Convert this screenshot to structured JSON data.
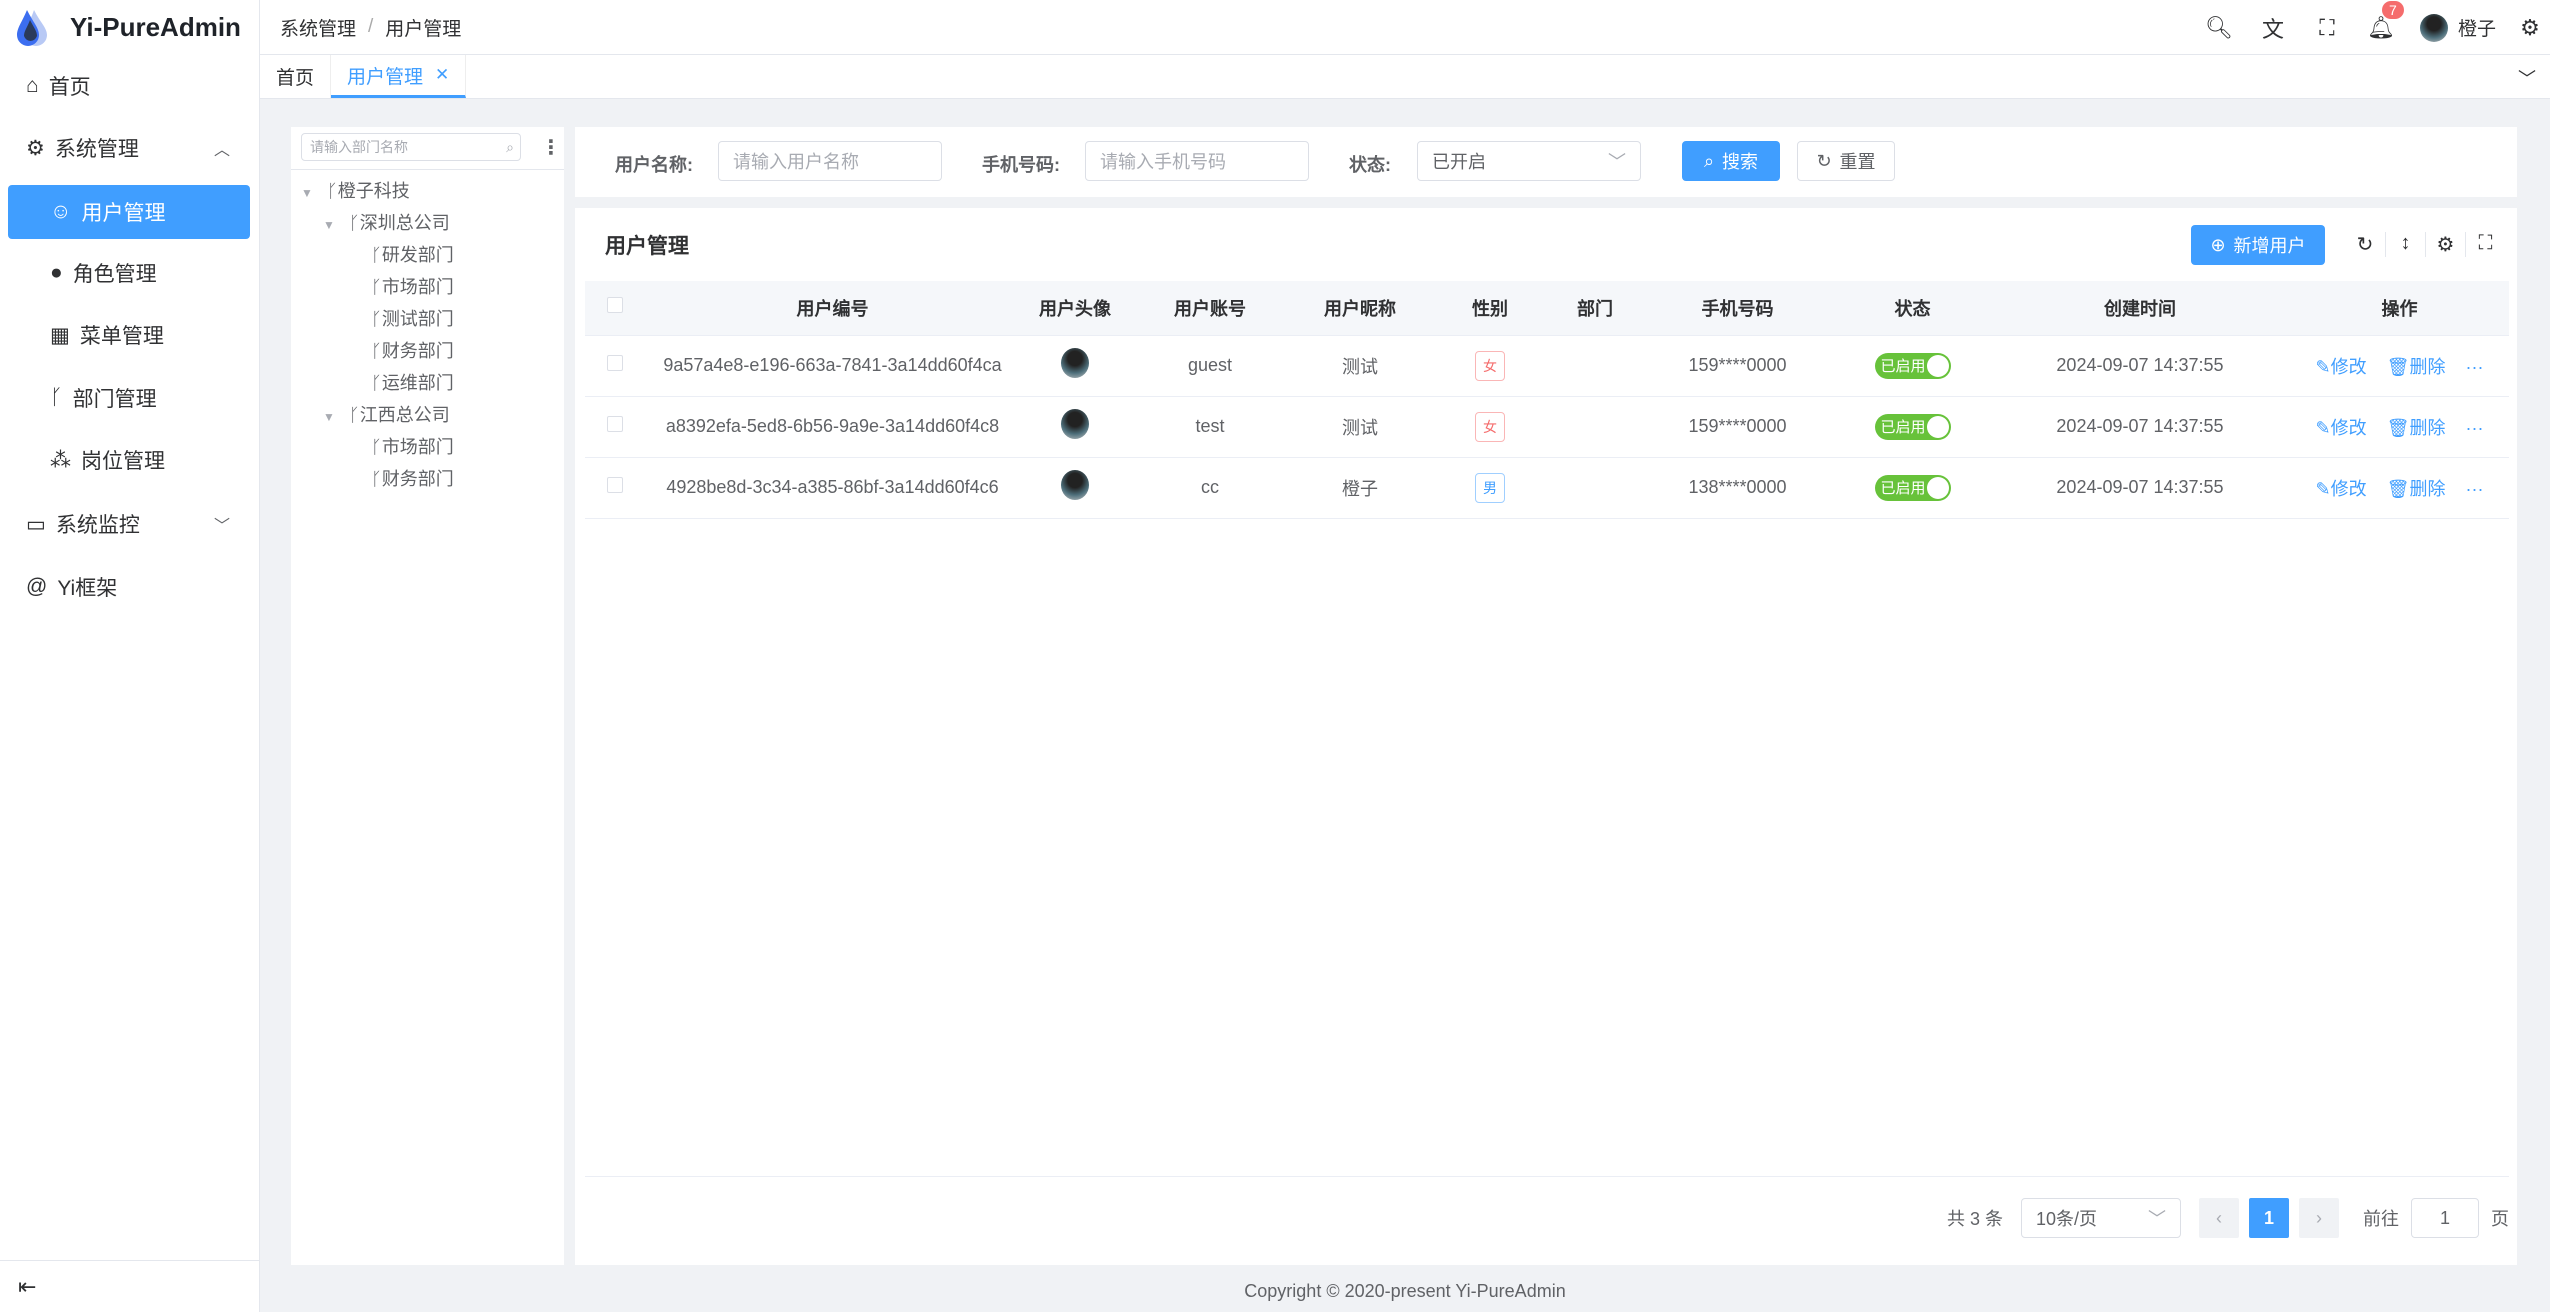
{
  "app": {
    "title": "Yi-PureAdmin",
    "copyright": "Copyright © 2020-present Yi-PureAdmin"
  },
  "colors": {
    "primary": "#409eff",
    "success": "#67c23a",
    "danger": "#f56c6c"
  },
  "sidebar": {
    "items": [
      {
        "label": "首页",
        "icon": "home-icon"
      },
      {
        "label": "系统管理",
        "icon": "gear-icon",
        "expanded": true
      },
      {
        "label": "用户管理",
        "icon": "user-icon",
        "active": true
      },
      {
        "label": "角色管理",
        "icon": "role-icon"
      },
      {
        "label": "菜单管理",
        "icon": "menu-icon"
      },
      {
        "label": "部门管理",
        "icon": "branch-icon"
      },
      {
        "label": "岗位管理",
        "icon": "org-icon"
      },
      {
        "label": "系统监控",
        "icon": "monitor-icon"
      },
      {
        "label": "Yi框架",
        "icon": "at-icon"
      }
    ]
  },
  "header": {
    "breadcrumb": [
      "系统管理",
      "用户管理"
    ],
    "sep": "/",
    "notification_count": "7",
    "username": "橙子"
  },
  "tabs": [
    {
      "label": "首页"
    },
    {
      "label": "用户管理",
      "active": true
    }
  ],
  "tree": {
    "placeholder": "请输入部门名称",
    "nodes": [
      "橙子科技",
      "深圳总公司",
      "研发部门",
      "市场部门",
      "测试部门",
      "财务部门",
      "运维部门",
      "江西总公司",
      "市场部门",
      "财务部门"
    ]
  },
  "search": {
    "username_label": "用户名称:",
    "username_placeholder": "请输入用户名称",
    "phone_label": "手机号码:",
    "phone_placeholder": "请输入手机号码",
    "status_label": "状态:",
    "status_value": "已开启",
    "search_btn": "搜索",
    "reset_btn": "重置"
  },
  "table": {
    "title": "用户管理",
    "add_btn": "新增用户",
    "columns": [
      "用户编号",
      "用户头像",
      "用户账号",
      "用户昵称",
      "性别",
      "部门",
      "手机号码",
      "状态",
      "创建时间",
      "操作"
    ],
    "rows": [
      {
        "id": "9a57a4e8-e196-663a-7841-3a14dd60f4ca",
        "account": "guest",
        "nick": "测试",
        "gender": "女",
        "dept": "",
        "phone": "159****0000",
        "status": "已启用",
        "created": "2024-09-07 14:37:55"
      },
      {
        "id": "a8392efa-5ed8-6b56-9a9e-3a14dd60f4c8",
        "account": "test",
        "nick": "测试",
        "gender": "女",
        "dept": "",
        "phone": "159****0000",
        "status": "已启用",
        "created": "2024-09-07 14:37:55"
      },
      {
        "id": "4928be8d-3c34-a385-86bf-3a14dd60f4c6",
        "account": "cc",
        "nick": "橙子",
        "gender": "男",
        "dept": "",
        "phone": "138****0000",
        "status": "已启用",
        "created": "2024-09-07 14:37:55"
      }
    ],
    "edit": "修改",
    "delete": "删除"
  },
  "pagination": {
    "total": "共 3 条",
    "page_size": "10条/页",
    "current": "1",
    "goto_label": "前往",
    "goto_value": "1",
    "page_suffix": "页"
  }
}
